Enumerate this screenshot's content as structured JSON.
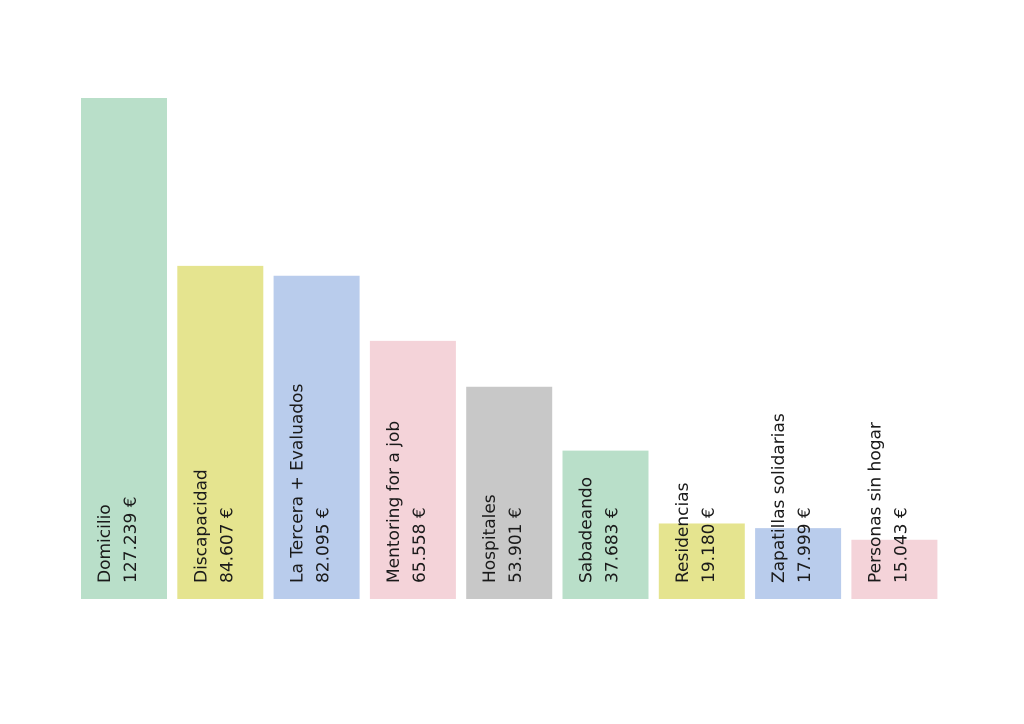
{
  "chart_data": {
    "type": "bar",
    "categories": [
      "Domicilio",
      "Discapacidad",
      "La Tercera + Evaluados",
      "Mentoring for a job",
      "Hospitales",
      "Sabadeando",
      "Residencias",
      "Zapatillas solidarias",
      "Personas sin hogar"
    ],
    "values": [
      127239,
      84607,
      82095,
      65558,
      53901,
      37683,
      19180,
      17999,
      15043
    ],
    "value_labels": [
      "127.239 €",
      "84.607 €",
      "82.095 €",
      "65.558 €",
      "53.901 €",
      "37.683 €",
      "19.180 €",
      "17.999 €",
      "15.043 €"
    ],
    "colors": [
      "#b9dfc9",
      "#e5e48f",
      "#b9ccec",
      "#f4d3d9",
      "#c8c8c8",
      "#b9dfc9",
      "#e5e48f",
      "#b9ccec",
      "#f4d3d9"
    ]
  }
}
